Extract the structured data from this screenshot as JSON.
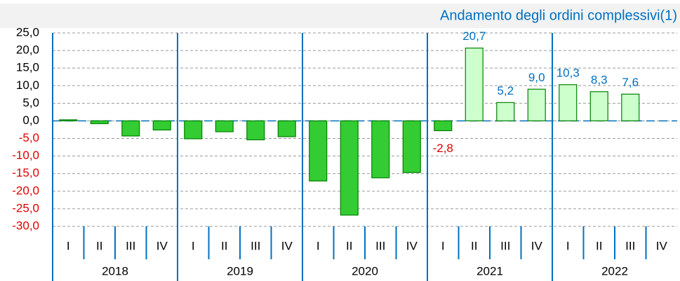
{
  "chart_data": {
    "type": "bar",
    "title": "Andamento degli ordini complessivi(1)",
    "categories": [
      "I",
      "II",
      "III",
      "IV",
      "I",
      "II",
      "III",
      "IV",
      "I",
      "II",
      "III",
      "IV",
      "I",
      "II",
      "III",
      "IV",
      "I",
      "II",
      "III",
      "IV"
    ],
    "groups": [
      "2018",
      "2019",
      "2020",
      "2021",
      "2022"
    ],
    "values": [
      0.3,
      -0.8,
      -4.3,
      -2.6,
      -5.1,
      -3.1,
      -5.4,
      -4.5,
      -17.1,
      -26.8,
      -16.2,
      -14.7,
      -2.8,
      20.7,
      5.2,
      9.0,
      10.3,
      8.3,
      7.6,
      null
    ],
    "value_labels": [
      null,
      null,
      null,
      null,
      null,
      null,
      null,
      null,
      null,
      null,
      null,
      null,
      "-2,8",
      "20,7",
      "5,2",
      "9,0",
      "10,3",
      "8,3",
      "7,6",
      null
    ],
    "colors": [
      "#33cc33",
      "#33cc33",
      "#33cc33",
      "#33cc33",
      "#33cc33",
      "#33cc33",
      "#33cc33",
      "#33cc33",
      "#33cc33",
      "#33cc33",
      "#33cc33",
      "#33cc33",
      "#33cc33",
      "#ccffcc",
      "#ccffcc",
      "#ccffcc",
      "#ccffcc",
      "#ccffcc",
      "#ccffcc",
      "#ccffcc"
    ],
    "border_color": "#008000",
    "positive_label_color": "#0070c0",
    "negative_label_color": "#e00000",
    "ylim": [
      -30,
      25
    ],
    "yticks": [
      {
        "value": 25,
        "label": "25,0"
      },
      {
        "value": 20,
        "label": "20,0"
      },
      {
        "value": 15,
        "label": "15,0"
      },
      {
        "value": 10,
        "label": "10,0"
      },
      {
        "value": 5,
        "label": "5,0"
      },
      {
        "value": 0,
        "label": "0,0"
      },
      {
        "value": -5,
        "label": "-5,0"
      },
      {
        "value": -10,
        "label": "-10,0"
      },
      {
        "value": -15,
        "label": "-15,0"
      },
      {
        "value": -20,
        "label": "-20,0"
      },
      {
        "value": -25,
        "label": "-25,0"
      },
      {
        "value": -30,
        "label": "-30,0"
      }
    ],
    "grid": true
  }
}
